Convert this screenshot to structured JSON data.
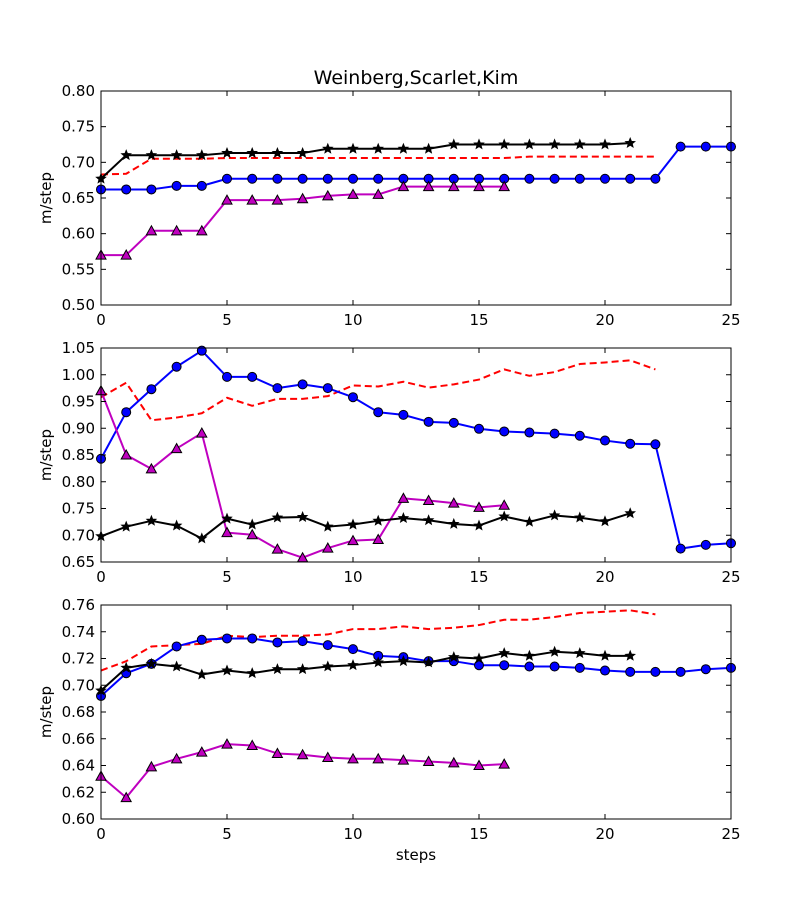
{
  "chart_data": {
    "title": "Weinberg,Scarlet,Kim",
    "xlabel": "steps",
    "xlim": [
      0,
      25
    ],
    "xticks": [
      0,
      5,
      10,
      15,
      20,
      25
    ],
    "grid": false,
    "subplots": [
      {
        "type": "line",
        "ylabel": "m/step",
        "ylim": [
          0.5,
          0.8
        ],
        "yticks": [
          0.5,
          0.55,
          0.6,
          0.65,
          0.7,
          0.75,
          0.8
        ],
        "ydecimals": 2,
        "series": [
          {
            "color": "#ff0000",
            "style": "dashed",
            "marker": "none",
            "x": [
              0,
              1,
              2,
              3,
              4,
              5,
              6,
              7,
              8,
              9,
              10,
              11,
              12,
              13,
              14,
              15,
              16,
              17,
              18,
              19,
              20,
              21,
              22
            ],
            "y": [
              0.683,
              0.684,
              0.705,
              0.705,
              0.705,
              0.706,
              0.706,
              0.706,
              0.706,
              0.706,
              0.706,
              0.706,
              0.706,
              0.706,
              0.706,
              0.706,
              0.706,
              0.708,
              0.708,
              0.708,
              0.708,
              0.708,
              0.708
            ]
          },
          {
            "color": "#0000ff",
            "style": "solid",
            "marker": "circle",
            "x": [
              0,
              1,
              2,
              3,
              4,
              5,
              6,
              7,
              8,
              9,
              10,
              11,
              12,
              13,
              14,
              15,
              16,
              17,
              18,
              19,
              20,
              21,
              22,
              23,
              24,
              25
            ],
            "y": [
              0.662,
              0.662,
              0.662,
              0.667,
              0.667,
              0.677,
              0.677,
              0.677,
              0.677,
              0.677,
              0.677,
              0.677,
              0.677,
              0.677,
              0.677,
              0.677,
              0.677,
              0.677,
              0.677,
              0.677,
              0.677,
              0.677,
              0.677,
              0.722,
              0.722,
              0.722
            ]
          },
          {
            "color": "#bf00bf",
            "style": "solid",
            "marker": "triangle",
            "x": [
              0,
              1,
              2,
              3,
              4,
              5,
              6,
              7,
              8,
              9,
              10,
              11,
              12,
              13,
              14,
              15,
              16
            ],
            "y": [
              0.57,
              0.57,
              0.604,
              0.604,
              0.604,
              0.647,
              0.647,
              0.647,
              0.649,
              0.653,
              0.655,
              0.655,
              0.666,
              0.666,
              0.666,
              0.666,
              0.666
            ]
          },
          {
            "color": "#000000",
            "style": "solid",
            "marker": "star",
            "x": [
              0,
              1,
              2,
              3,
              4,
              5,
              6,
              7,
              8,
              9,
              10,
              11,
              12,
              13,
              14,
              15,
              16,
              17,
              18,
              19,
              20,
              21
            ],
            "y": [
              0.677,
              0.71,
              0.71,
              0.71,
              0.71,
              0.713,
              0.713,
              0.713,
              0.713,
              0.719,
              0.719,
              0.719,
              0.719,
              0.719,
              0.725,
              0.725,
              0.725,
              0.725,
              0.725,
              0.725,
              0.725,
              0.727
            ]
          }
        ]
      },
      {
        "type": "line",
        "ylabel": "m/step",
        "ylim": [
          0.65,
          1.05
        ],
        "yticks": [
          0.65,
          0.7,
          0.75,
          0.8,
          0.85,
          0.9,
          0.95,
          1.0,
          1.05
        ],
        "ydecimals": 2,
        "series": [
          {
            "color": "#ff0000",
            "style": "dashed",
            "marker": "none",
            "x": [
              0,
              1,
              2,
              3,
              4,
              5,
              6,
              7,
              8,
              9,
              10,
              11,
              12,
              13,
              14,
              15,
              16,
              17,
              18,
              19,
              20,
              21,
              22
            ],
            "y": [
              0.958,
              0.985,
              0.915,
              0.92,
              0.928,
              0.957,
              0.942,
              0.955,
              0.955,
              0.96,
              0.98,
              0.978,
              0.987,
              0.976,
              0.982,
              0.991,
              1.01,
              0.998,
              1.005,
              1.02,
              1.023,
              1.027,
              1.01
            ]
          },
          {
            "color": "#0000ff",
            "style": "solid",
            "marker": "circle",
            "x": [
              0,
              1,
              2,
              3,
              4,
              5,
              6,
              7,
              8,
              9,
              10,
              11,
              12,
              13,
              14,
              15,
              16,
              17,
              18,
              19,
              20,
              21,
              22,
              23,
              24,
              25
            ],
            "y": [
              0.843,
              0.93,
              0.973,
              1.015,
              1.045,
              0.996,
              0.996,
              0.975,
              0.982,
              0.975,
              0.958,
              0.93,
              0.925,
              0.912,
              0.91,
              0.899,
              0.894,
              0.892,
              0.89,
              0.886,
              0.877,
              0.871,
              0.87,
              0.675,
              0.682,
              0.685
            ]
          },
          {
            "color": "#bf00bf",
            "style": "solid",
            "marker": "triangle",
            "x": [
              0,
              1,
              2,
              3,
              4,
              5,
              6,
              7,
              8,
              9,
              10,
              11,
              12,
              13,
              14,
              15,
              16
            ],
            "y": [
              0.97,
              0.85,
              0.824,
              0.862,
              0.891,
              0.705,
              0.701,
              0.674,
              0.658,
              0.676,
              0.69,
              0.692,
              0.769,
              0.765,
              0.76,
              0.752,
              0.756
            ]
          },
          {
            "color": "#000000",
            "style": "solid",
            "marker": "star",
            "x": [
              0,
              1,
              2,
              3,
              4,
              5,
              6,
              7,
              8,
              9,
              10,
              11,
              12,
              13,
              14,
              15,
              16,
              17,
              18,
              19,
              20,
              21
            ],
            "y": [
              0.698,
              0.716,
              0.727,
              0.718,
              0.694,
              0.731,
              0.72,
              0.733,
              0.734,
              0.716,
              0.72,
              0.727,
              0.732,
              0.728,
              0.721,
              0.718,
              0.735,
              0.725,
              0.737,
              0.733,
              0.726,
              0.741
            ]
          }
        ]
      },
      {
        "type": "line",
        "ylabel": "m/step",
        "ylim": [
          0.6,
          0.76
        ],
        "yticks": [
          0.6,
          0.62,
          0.64,
          0.66,
          0.68,
          0.7,
          0.72,
          0.74,
          0.76
        ],
        "ydecimals": 2,
        "series": [
          {
            "color": "#ff0000",
            "style": "dashed",
            "marker": "none",
            "x": [
              0,
              1,
              2,
              3,
              4,
              5,
              6,
              7,
              8,
              9,
              10,
              11,
              12,
              13,
              14,
              15,
              16,
              17,
              18,
              19,
              20,
              21,
              22
            ],
            "y": [
              0.711,
              0.718,
              0.729,
              0.73,
              0.731,
              0.737,
              0.736,
              0.737,
              0.737,
              0.738,
              0.742,
              0.742,
              0.744,
              0.742,
              0.743,
              0.745,
              0.749,
              0.749,
              0.751,
              0.754,
              0.755,
              0.756,
              0.753
            ]
          },
          {
            "color": "#0000ff",
            "style": "solid",
            "marker": "circle",
            "x": [
              0,
              1,
              2,
              3,
              4,
              5,
              6,
              7,
              8,
              9,
              10,
              11,
              12,
              13,
              14,
              15,
              16,
              17,
              18,
              19,
              20,
              21,
              22,
              23,
              24,
              25
            ],
            "y": [
              0.692,
              0.709,
              0.716,
              0.729,
              0.734,
              0.735,
              0.735,
              0.732,
              0.733,
              0.73,
              0.727,
              0.722,
              0.721,
              0.718,
              0.718,
              0.715,
              0.715,
              0.714,
              0.714,
              0.713,
              0.711,
              0.71,
              0.71,
              0.71,
              0.712,
              0.713
            ]
          },
          {
            "color": "#bf00bf",
            "style": "solid",
            "marker": "triangle",
            "x": [
              0,
              1,
              2,
              3,
              4,
              5,
              6,
              7,
              8,
              9,
              10,
              11,
              12,
              13,
              14,
              15,
              16
            ],
            "y": [
              0.632,
              0.616,
              0.639,
              0.645,
              0.65,
              0.656,
              0.655,
              0.649,
              0.648,
              0.646,
              0.645,
              0.645,
              0.644,
              0.643,
              0.642,
              0.64,
              0.641
            ]
          },
          {
            "color": "#000000",
            "style": "solid",
            "marker": "star",
            "x": [
              0,
              1,
              2,
              3,
              4,
              5,
              6,
              7,
              8,
              9,
              10,
              11,
              12,
              13,
              14,
              15,
              16,
              17,
              18,
              19,
              20,
              21
            ],
            "y": [
              0.696,
              0.713,
              0.716,
              0.714,
              0.708,
              0.711,
              0.709,
              0.712,
              0.712,
              0.714,
              0.715,
              0.717,
              0.718,
              0.717,
              0.721,
              0.72,
              0.724,
              0.722,
              0.725,
              0.724,
              0.722,
              0.722
            ]
          }
        ]
      }
    ]
  }
}
